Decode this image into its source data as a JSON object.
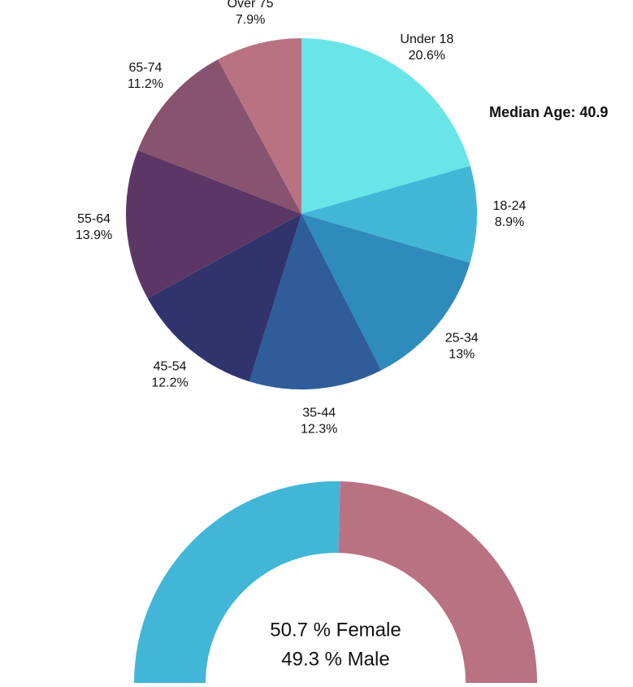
{
  "chart_data": [
    {
      "type": "pie",
      "categories": [
        "Under 18",
        "18-24",
        "25-34",
        "35-44",
        "45-54",
        "55-64",
        "65-74",
        "Over 75"
      ],
      "values": [
        20.6,
        8.9,
        13,
        12.3,
        12.2,
        13.9,
        11.2,
        7.9
      ],
      "value_labels": [
        "20.6%",
        "8.9%",
        "13%",
        "12.3%",
        "12.2%",
        "13.9%",
        "11.2%",
        "7.9%"
      ],
      "colors": [
        "#69e5e8",
        "#42b6d6",
        "#2e8bbb",
        "#2e5d99",
        "#30336c",
        "#5c3766",
        "#87536f",
        "#b97282"
      ],
      "annotation": "Median Age: 40.9"
    },
    {
      "type": "half-donut",
      "categories": [
        "Female",
        "Male"
      ],
      "values": [
        50.7,
        49.3
      ],
      "value_labels": [
        "50.7 % Female",
        "49.3 % Male"
      ],
      "colors": [
        "#42b6d6",
        "#b97282"
      ]
    }
  ]
}
